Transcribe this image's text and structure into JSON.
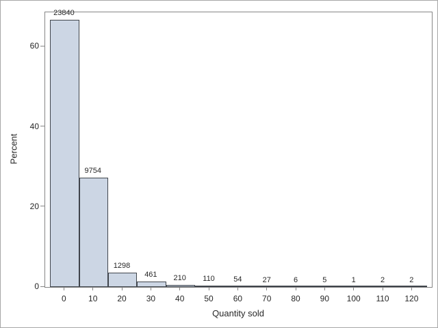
{
  "chart_data": {
    "type": "bar",
    "subtype": "histogram",
    "title": "",
    "xlabel": "Quantity sold",
    "ylabel": "Percent",
    "categories": [
      0,
      10,
      20,
      30,
      40,
      50,
      60,
      70,
      80,
      90,
      100,
      110,
      120
    ],
    "counts": [
      23840,
      9754,
      1298,
      461,
      210,
      110,
      54,
      27,
      6,
      5,
      1,
      2,
      2
    ],
    "bar_labels": [
      "23840",
      "9754",
      "1298",
      "461",
      "210",
      "110",
      "54",
      "27",
      "6",
      "5",
      "1",
      "2",
      "2"
    ],
    "percent_values": [
      66.65,
      27.27,
      3.63,
      1.29,
      0.59,
      0.31,
      0.15,
      0.08,
      0.017,
      0.014,
      0.003,
      0.006,
      0.006
    ],
    "yticks": [
      0,
      20,
      40,
      60
    ],
    "xticks": [
      0,
      10,
      20,
      30,
      40,
      50,
      60,
      70,
      80,
      90,
      100,
      110,
      120
    ],
    "ylim": [
      0,
      68.6
    ],
    "xlim": [
      -6.7,
      126.8
    ],
    "bin_width": 10,
    "grid": "off",
    "legend": "none",
    "colors": {
      "bar_fill": "#ccd6e4",
      "bar_border": "#3f444b",
      "axis_line": "#858585",
      "text": "#262626",
      "figure_border": "#a6a6a6",
      "background": "#ffffff"
    }
  }
}
